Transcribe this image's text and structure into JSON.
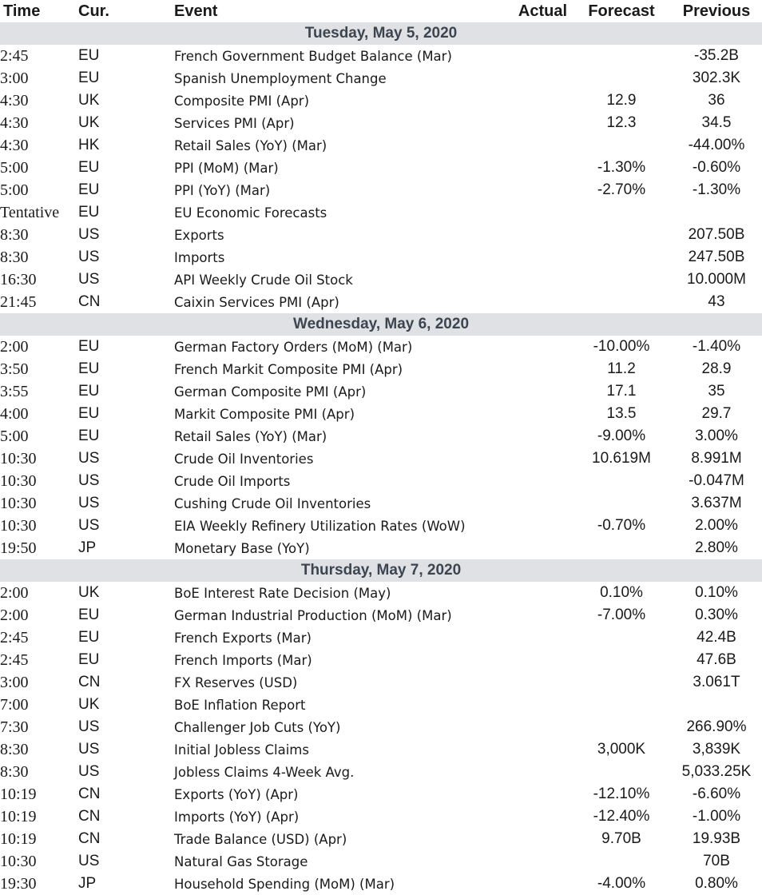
{
  "headers": {
    "time": "Time",
    "currency": "Cur.",
    "event": "Event",
    "actual": "Actual",
    "forecast": "Forecast",
    "previous": "Previous"
  },
  "days": [
    {
      "label": "Tuesday, May 5, 2020",
      "rows": [
        {
          "time": "2:45",
          "cur": "EU",
          "event": "French Government Budget Balance (Mar)",
          "actual": "",
          "forecast": "",
          "previous": "-35.2B"
        },
        {
          "time": "3:00",
          "cur": "EU",
          "event": "Spanish Unemployment Change",
          "actual": "",
          "forecast": "",
          "previous": "302.3K"
        },
        {
          "time": "4:30",
          "cur": "UK",
          "event": "Composite PMI (Apr)",
          "actual": "",
          "forecast": "12.9",
          "previous": "36"
        },
        {
          "time": "4:30",
          "cur": "UK",
          "event": "Services PMI (Apr)",
          "actual": "",
          "forecast": "12.3",
          "previous": "34.5"
        },
        {
          "time": "4:30",
          "cur": "HK",
          "event": "Retail Sales (YoY) (Mar)",
          "actual": "",
          "forecast": "",
          "previous": "-44.00%"
        },
        {
          "time": "5:00",
          "cur": "EU",
          "event": "PPI (MoM) (Mar)",
          "actual": "",
          "forecast": "-1.30%",
          "previous": "-0.60%"
        },
        {
          "time": "5:00",
          "cur": "EU",
          "event": "PPI (YoY) (Mar)",
          "actual": "",
          "forecast": "-2.70%",
          "previous": "-1.30%"
        },
        {
          "time": "Tentative",
          "cur": "EU",
          "event": "EU Economic Forecasts",
          "actual": "",
          "forecast": "",
          "previous": ""
        },
        {
          "time": "8:30",
          "cur": "US",
          "event": "Exports",
          "actual": "",
          "forecast": "",
          "previous": "207.50B"
        },
        {
          "time": "8:30",
          "cur": "US",
          "event": "Imports",
          "actual": "",
          "forecast": "",
          "previous": "247.50B"
        },
        {
          "time": "16:30",
          "cur": "US",
          "event": "API Weekly Crude Oil Stock",
          "actual": "",
          "forecast": "",
          "previous": "10.000M"
        },
        {
          "time": "21:45",
          "cur": "CN",
          "event": "Caixin Services PMI (Apr)",
          "actual": "",
          "forecast": "",
          "previous": "43"
        }
      ]
    },
    {
      "label": "Wednesday, May 6, 2020",
      "rows": [
        {
          "time": "2:00",
          "cur": "EU",
          "event": "German Factory Orders (MoM) (Mar)",
          "actual": "",
          "forecast": "-10.00%",
          "previous": "-1.40%"
        },
        {
          "time": "3:50",
          "cur": "EU",
          "event": "French Markit Composite PMI (Apr)",
          "actual": "",
          "forecast": "11.2",
          "previous": "28.9"
        },
        {
          "time": "3:55",
          "cur": "EU",
          "event": "German Composite PMI (Apr)",
          "actual": "",
          "forecast": "17.1",
          "previous": "35"
        },
        {
          "time": "4:00",
          "cur": "EU",
          "event": "Markit Composite PMI (Apr)",
          "actual": "",
          "forecast": "13.5",
          "previous": "29.7"
        },
        {
          "time": "5:00",
          "cur": "EU",
          "event": "Retail Sales (YoY) (Mar)",
          "actual": "",
          "forecast": "-9.00%",
          "previous": "3.00%"
        },
        {
          "time": "10:30",
          "cur": "US",
          "event": "Crude Oil Inventories",
          "actual": "",
          "forecast": "10.619M",
          "previous": "8.991M"
        },
        {
          "time": "10:30",
          "cur": "US",
          "event": "Crude Oil Imports",
          "actual": "",
          "forecast": "",
          "previous": "-0.047M"
        },
        {
          "time": "10:30",
          "cur": "US",
          "event": "Cushing Crude Oil Inventories",
          "actual": "",
          "forecast": "",
          "previous": "3.637M"
        },
        {
          "time": "10:30",
          "cur": "US",
          "event": "EIA Weekly Refinery Utilization Rates (WoW)",
          "actual": "",
          "forecast": "-0.70%",
          "previous": "2.00%"
        },
        {
          "time": "19:50",
          "cur": "JP",
          "event": "Monetary Base (YoY)",
          "actual": "",
          "forecast": "",
          "previous": "2.80%"
        }
      ]
    },
    {
      "label": "Thursday, May 7, 2020",
      "rows": [
        {
          "time": "2:00",
          "cur": "UK",
          "event": "BoE Interest Rate Decision (May)",
          "actual": "",
          "forecast": "0.10%",
          "previous": "0.10%"
        },
        {
          "time": "2:00",
          "cur": "EU",
          "event": "German Industrial Production (MoM) (Mar)",
          "actual": "",
          "forecast": "-7.00%",
          "previous": "0.30%"
        },
        {
          "time": "2:45",
          "cur": "EU",
          "event": "French Exports (Mar)",
          "actual": "",
          "forecast": "",
          "previous": "42.4B"
        },
        {
          "time": "2:45",
          "cur": "EU",
          "event": "French Imports (Mar)",
          "actual": "",
          "forecast": "",
          "previous": "47.6B"
        },
        {
          "time": "3:00",
          "cur": "CN",
          "event": "FX Reserves (USD)",
          "actual": "",
          "forecast": "",
          "previous": "3.061T"
        },
        {
          "time": "7:00",
          "cur": "UK",
          "event": "BoE Inflation Report",
          "actual": "",
          "forecast": "",
          "previous": ""
        },
        {
          "time": "7:30",
          "cur": "US",
          "event": "Challenger Job Cuts (YoY)",
          "actual": "",
          "forecast": "",
          "previous": "266.90%"
        },
        {
          "time": "8:30",
          "cur": "US",
          "event": "Initial Jobless Claims",
          "actual": "",
          "forecast": "3,000K",
          "previous": "3,839K"
        },
        {
          "time": "8:30",
          "cur": "US",
          "event": "Jobless Claims 4-Week Avg.",
          "actual": "",
          "forecast": "",
          "previous": "5,033.25K"
        },
        {
          "time": "10:19",
          "cur": "CN",
          "event": "Exports (YoY) (Apr)",
          "actual": "",
          "forecast": "-12.10%",
          "previous": "-6.60%"
        },
        {
          "time": "10:19",
          "cur": "CN",
          "event": "Imports (YoY) (Apr)",
          "actual": "",
          "forecast": "-12.40%",
          "previous": "-1.00%"
        },
        {
          "time": "10:19",
          "cur": "CN",
          "event": "Trade Balance (USD) (Apr)",
          "actual": "",
          "forecast": "9.70B",
          "previous": "19.93B"
        },
        {
          "time": "10:30",
          "cur": "US",
          "event": "Natural Gas Storage",
          "actual": "",
          "forecast": "",
          "previous": "70B"
        },
        {
          "time": "19:30",
          "cur": "JP",
          "event": "Household Spending (MoM) (Mar)",
          "actual": "",
          "forecast": "-4.00%",
          "previous": "0.80%"
        }
      ]
    }
  ]
}
